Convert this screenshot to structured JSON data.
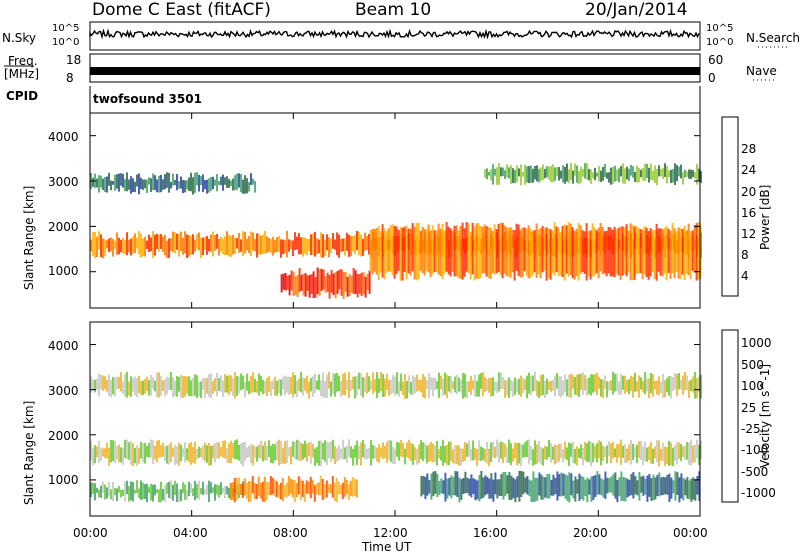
{
  "header": {
    "radar": "Dome C East (fitACF)",
    "beam": "Beam 10",
    "date": "20/Jan/2014"
  },
  "top_panels": {
    "nsky_label": "N.Sky",
    "nsky_ticks": [
      "10^5",
      "10^0"
    ],
    "nsearch_label": "N.Search",
    "freq_label": "Freq.",
    "freq_unit": "[MHz]",
    "freq_ticks": [
      "18",
      "8"
    ],
    "nave_label": "Nave",
    "nave_ticks": [
      "60",
      "0"
    ],
    "cpid_label": "CPID",
    "cpid_value": "twofsound 3501"
  },
  "colors": {
    "power": [
      "#1a1aff",
      "#2a45a8",
      "#2e6b4a",
      "#43a36c",
      "#9acd32",
      "#ffb000",
      "#ff7a00",
      "#ff2a00",
      "#e60000"
    ],
    "velocity": [
      "#2a45a8",
      "#2e6b4a",
      "#43a36c",
      "#66cc33",
      "#c8c8c4",
      "#f0b428",
      "#ff8c00",
      "#ff4500",
      "#ff0000"
    ]
  },
  "chart_data": [
    {
      "type": "heatmap",
      "name": "power",
      "ylabel": "Slant Range [km]",
      "ylim": [
        200,
        4500
      ],
      "y_ticks": [
        "1000",
        "2000",
        "3000",
        "4000"
      ],
      "xlim": [
        "00:00",
        "00:00"
      ],
      "colorbar": {
        "label": "Power [dB]",
        "ticks": [
          "4",
          "8",
          "12",
          "16",
          "20",
          "24",
          "28"
        ],
        "range": [
          0,
          32
        ]
      },
      "bands": [
        {
          "t_start": 0.0,
          "t_end": 24.0,
          "r_start": 1300,
          "r_end": 1900,
          "value": 22
        },
        {
          "t_start": 7.5,
          "t_end": 11.0,
          "r_start": 400,
          "r_end": 1100,
          "value": 28
        },
        {
          "t_start": 11.0,
          "t_end": 24.0,
          "r_start": 800,
          "r_end": 2100,
          "value": 24
        },
        {
          "t_start": 0.0,
          "t_end": 6.5,
          "r_start": 2700,
          "r_end": 3200,
          "value": 6
        },
        {
          "t_start": 15.5,
          "t_end": 24.0,
          "r_start": 2900,
          "r_end": 3400,
          "value": 13
        }
      ]
    },
    {
      "type": "heatmap",
      "name": "velocity",
      "ylabel": "Slant Range [km]",
      "xlabel": "Time UT",
      "ylim": [
        200,
        4500
      ],
      "y_ticks": [
        "1000",
        "2000",
        "3000",
        "4000"
      ],
      "x_ticks": [
        "00:00",
        "04:00",
        "08:00",
        "12:00",
        "16:00",
        "20:00",
        "00:00"
      ],
      "colorbar": {
        "label": "Velocity [m s^-1]",
        "ticks": [
          "1000",
          "500",
          "100",
          "25",
          "-25",
          "-100",
          "-500",
          "-1000"
        ]
      },
      "bands": [
        {
          "t_start": 0.0,
          "t_end": 24.0,
          "r_start": 1300,
          "r_end": 1900,
          "value": 0
        },
        {
          "t_start": 0.0,
          "t_end": 6.0,
          "r_start": 500,
          "r_end": 1000,
          "value": 150
        },
        {
          "t_start": 5.5,
          "t_end": 10.5,
          "r_start": 500,
          "r_end": 1100,
          "value": -300
        },
        {
          "t_start": 13.0,
          "t_end": 24.0,
          "r_start": 500,
          "r_end": 1200,
          "value": 200
        },
        {
          "t_start": 0.0,
          "t_end": 24.0,
          "r_start": 2800,
          "r_end": 3400,
          "value": 0
        }
      ]
    }
  ]
}
